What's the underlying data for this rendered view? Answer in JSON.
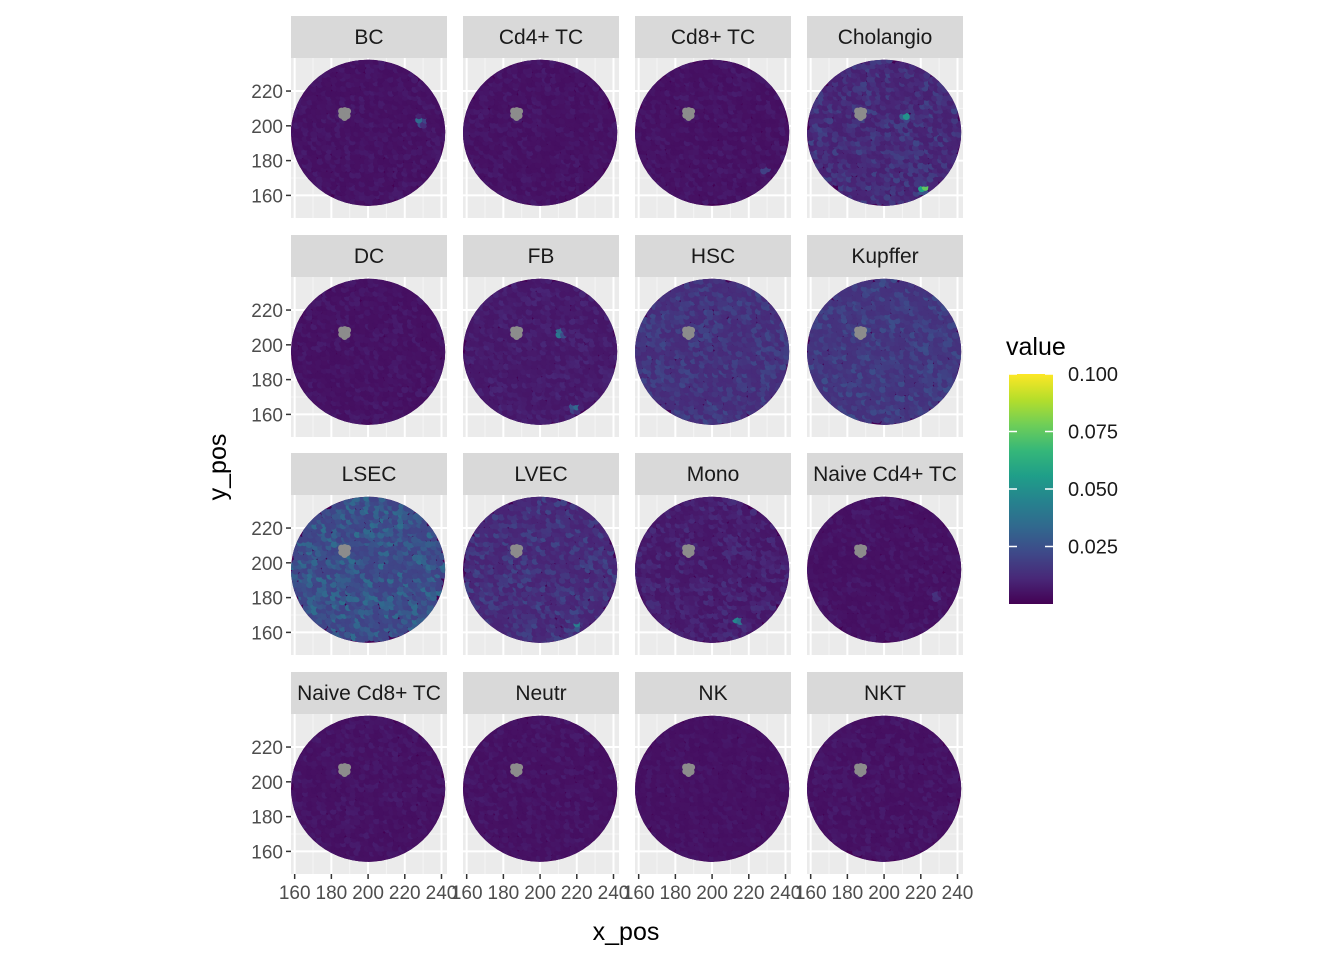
{
  "chart_data": {
    "type": "scatter",
    "layout": "facet-wrap 4x4",
    "xlabel": "x_pos",
    "ylabel": "y_pos",
    "x_ticks": [
      160,
      180,
      200,
      220,
      240
    ],
    "y_ticks": [
      160,
      180,
      200,
      220
    ],
    "xlim": [
      158,
      243
    ],
    "ylim": [
      239,
      147
    ],
    "y_reversed": true,
    "tissue_center": [
      200,
      196
    ],
    "tissue_radius": 42,
    "na_cluster": {
      "x": 187,
      "y": 207,
      "color": "#8c8c8c"
    },
    "legend": {
      "title": "value",
      "placement": "right",
      "ticks": [
        0.1,
        0.075,
        0.05,
        0.025
      ],
      "tick_labels": [
        "0.100",
        "0.075",
        "0.050",
        "0.025"
      ],
      "min": 0,
      "max": 0.1,
      "colors": [
        "#440154",
        "#482878",
        "#3e4989",
        "#31688e",
        "#26828e",
        "#1f9e89",
        "#35b779",
        "#6ece58",
        "#b5de2b",
        "#fde725"
      ]
    },
    "grid": true,
    "panel_background": "#ebebeb",
    "strip_background": "#d9d9d9",
    "panels": [
      {
        "label": "BC",
        "base": 0.004,
        "noise": 0.004,
        "hotspots": [
          {
            "x": 229,
            "y": 203,
            "value": 0.05
          }
        ]
      },
      {
        "label": "Cd4+ TC",
        "base": 0.004,
        "noise": 0.004,
        "hotspots": []
      },
      {
        "label": "Cd8+ TC",
        "base": 0.004,
        "noise": 0.004,
        "hotspots": [
          {
            "x": 229,
            "y": 175,
            "value": 0.025
          }
        ]
      },
      {
        "label": "Cholangio",
        "base": 0.009,
        "noise": 0.012,
        "hotspots": [
          {
            "x": 222,
            "y": 164,
            "value": 0.085
          },
          {
            "x": 212,
            "y": 206,
            "value": 0.055
          }
        ]
      },
      {
        "label": "DC",
        "base": 0.004,
        "noise": 0.004,
        "hotspots": []
      },
      {
        "label": "FB",
        "base": 0.006,
        "noise": 0.005,
        "hotspots": [
          {
            "x": 219,
            "y": 164,
            "value": 0.04
          },
          {
            "x": 211,
            "y": 207,
            "value": 0.055
          }
        ]
      },
      {
        "label": "HSC",
        "base": 0.012,
        "noise": 0.01,
        "hotspots": []
      },
      {
        "label": "Kupffer",
        "base": 0.014,
        "noise": 0.01,
        "hotspots": []
      },
      {
        "label": "LSEC",
        "base": 0.02,
        "noise": 0.016,
        "hotspots": [
          {
            "x": 206,
            "y": 224,
            "value": 0.045
          },
          {
            "x": 229,
            "y": 202,
            "value": 0.05
          }
        ]
      },
      {
        "label": "LVEC",
        "base": 0.01,
        "noise": 0.012,
        "hotspots": [
          {
            "x": 220,
            "y": 164,
            "value": 0.05
          }
        ]
      },
      {
        "label": "Mono",
        "base": 0.006,
        "noise": 0.008,
        "hotspots": [
          {
            "x": 214,
            "y": 167,
            "value": 0.055
          }
        ]
      },
      {
        "label": "Naive Cd4+ TC",
        "base": 0.004,
        "noise": 0.004,
        "hotspots": [
          {
            "x": 229,
            "y": 181,
            "value": 0.02
          }
        ]
      },
      {
        "label": "Naive Cd8+ TC",
        "base": 0.004,
        "noise": 0.004,
        "hotspots": []
      },
      {
        "label": "Neutr",
        "base": 0.004,
        "noise": 0.004,
        "hotspots": []
      },
      {
        "label": "NK",
        "base": 0.004,
        "noise": 0.003,
        "hotspots": []
      },
      {
        "label": "NKT",
        "base": 0.004,
        "noise": 0.004,
        "hotspots": []
      }
    ]
  }
}
